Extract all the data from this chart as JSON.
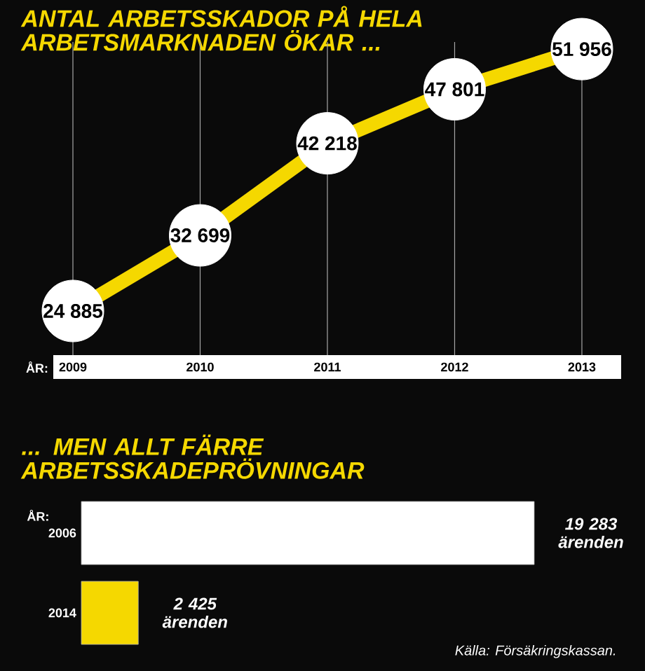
{
  "chart_data": [
    {
      "type": "line",
      "title": "ANTAL ARBETSSKADOR PÅ HELA ARBETSMARKNADEN ÖKAR ...",
      "xlabel": "ÅR:",
      "categories": [
        "2009",
        "2010",
        "2011",
        "2012",
        "2013"
      ],
      "values": [
        24885,
        32699,
        42218,
        47801,
        51956
      ],
      "value_labels": [
        "24 885",
        "32 699",
        "42 218",
        "47 801",
        "51 956"
      ],
      "color": "#f5d800",
      "marker": "circle",
      "grid": "x",
      "tick_labels": "x"
    },
    {
      "type": "bar",
      "orientation": "horizontal",
      "title": "... MEN ALLT FÄRRE ARBETSSKADEPRÖVNINGAR",
      "ylabel": "ÅR:",
      "categories": [
        "2006",
        "2014"
      ],
      "values": [
        19283,
        2425
      ],
      "colors": [
        "#ffffff",
        "#f5d800"
      ],
      "value_labels": [
        "19 283 ärenden",
        "2 425 ärenden"
      ],
      "tick_labels": "y",
      "annotations": [
        "Källa: Försäkringskassan."
      ]
    }
  ]
}
